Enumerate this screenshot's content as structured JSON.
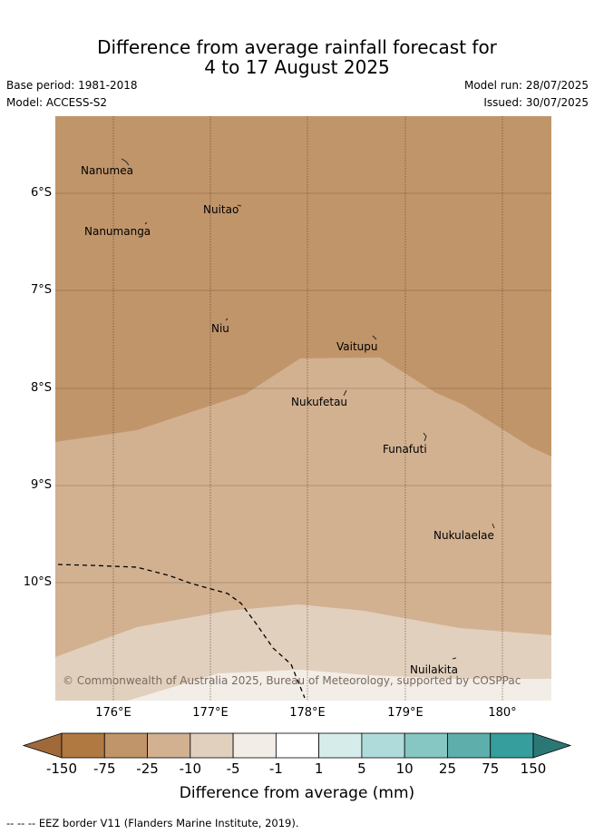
{
  "title_line1": "Difference from average rainfall forecast for",
  "title_line2": "4 to 17 August 2025",
  "base_period": "Base period: 1981-2018",
  "model": "Model: ACCESS-S2",
  "model_run": "Model run: 28/07/2025",
  "issued": "Issued: 30/07/2025",
  "copyright": "© Commonwealth of Australia 2025, Bureau of Meteorology, supported by COSPPac",
  "lat_ticks": [
    "6°S",
    "7°S",
    "8°S",
    "9°S",
    "10°S"
  ],
  "lon_ticks": [
    "176°E",
    "177°E",
    "178°E",
    "179°E",
    "180°"
  ],
  "islands": {
    "nanumea": "Nanumea",
    "nuitao": "Nuitao",
    "nanumanga": "Nanumanga",
    "niu": "Niu",
    "vaitupu": "Vaitupu",
    "nukufetau": "Nukufetau",
    "funafuti": "Funafuti",
    "nukulaelae": "Nukulaelae",
    "nuilakita": "Nuilakita"
  },
  "colorbar": {
    "title": "Difference from average (mm)",
    "labels": [
      "-150",
      "-75",
      "-25",
      "-10",
      "-5",
      "-1",
      "1",
      "5",
      "10",
      "25",
      "75",
      "150"
    ],
    "colors": [
      "#a0693a",
      "#b07941",
      "#c1956a",
      "#d2b191",
      "#e2d0be",
      "#f2ede7",
      "#ffffff",
      "#d5ecea",
      "#afdcda",
      "#86c6c3",
      "#5eaeac",
      "#369e9c",
      "#2b7775"
    ]
  },
  "legend_note": "--  --  -- EEZ border V11 (Flanders Marine Institute, 2019)."
}
